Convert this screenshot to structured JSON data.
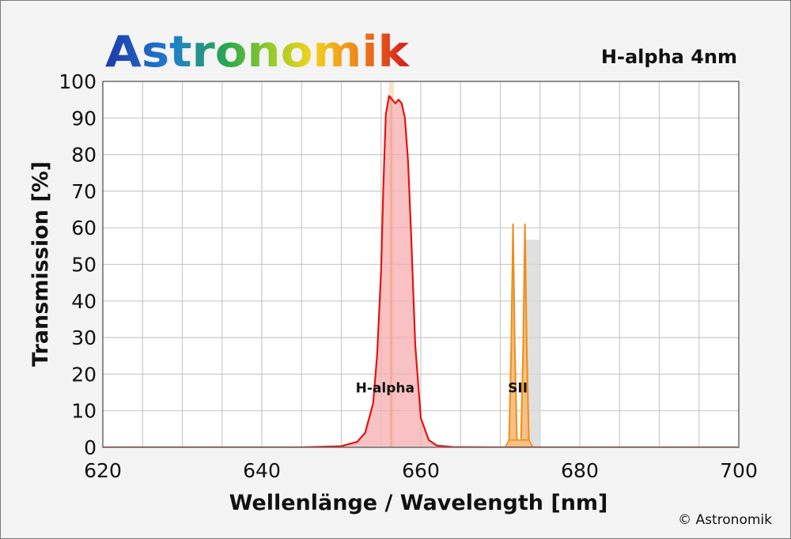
{
  "brand": {
    "name": "Astronomik"
  },
  "copyright": "© Astronomik",
  "chart_data": {
    "type": "area",
    "title": "H-alpha 4nm",
    "xlabel": "Wellenlänge / Wavelength [nm]",
    "ylabel": "Transmission [%]",
    "xlim": [
      620,
      700
    ],
    "ylim": [
      0,
      100
    ],
    "x_ticks": [
      620,
      640,
      660,
      680,
      700
    ],
    "y_ticks": [
      0,
      10,
      20,
      30,
      40,
      50,
      60,
      70,
      80,
      90,
      100
    ],
    "grid": true,
    "x_minor_step": 5,
    "series": [
      {
        "color": "#e3140e",
        "fill": "#f5aeb0",
        "x": [
          620,
          645,
          650,
          652,
          653,
          654,
          654.5,
          655,
          655.3,
          655.6,
          656,
          656.4,
          656.8,
          657.2,
          657.6,
          658,
          658.4,
          658.8,
          659.3,
          660,
          661,
          662,
          664,
          670,
          700
        ],
        "y": [
          0,
          0,
          0.3,
          1.5,
          4,
          12,
          25,
          48,
          72,
          91,
          96,
          95,
          94,
          95,
          94,
          90,
          78,
          57,
          28,
          8,
          2,
          0.5,
          0.1,
          0,
          0
        ]
      }
    ],
    "annotations": [
      {
        "text": "H-alpha",
        "x": 655.5,
        "y": 15,
        "line": 656.28,
        "line_color": "#f3991f",
        "band_color": "#f6c89a",
        "band": [
          656.0,
          656.6
        ]
      },
      {
        "text": "SII",
        "x": 672.2,
        "y": 15,
        "line_color": "#f08d17",
        "band_color": "#f6c184",
        "lines": [
          671.6,
          673.1
        ],
        "peak": 61,
        "shadow": [
          673.2,
          675
        ]
      }
    ]
  }
}
